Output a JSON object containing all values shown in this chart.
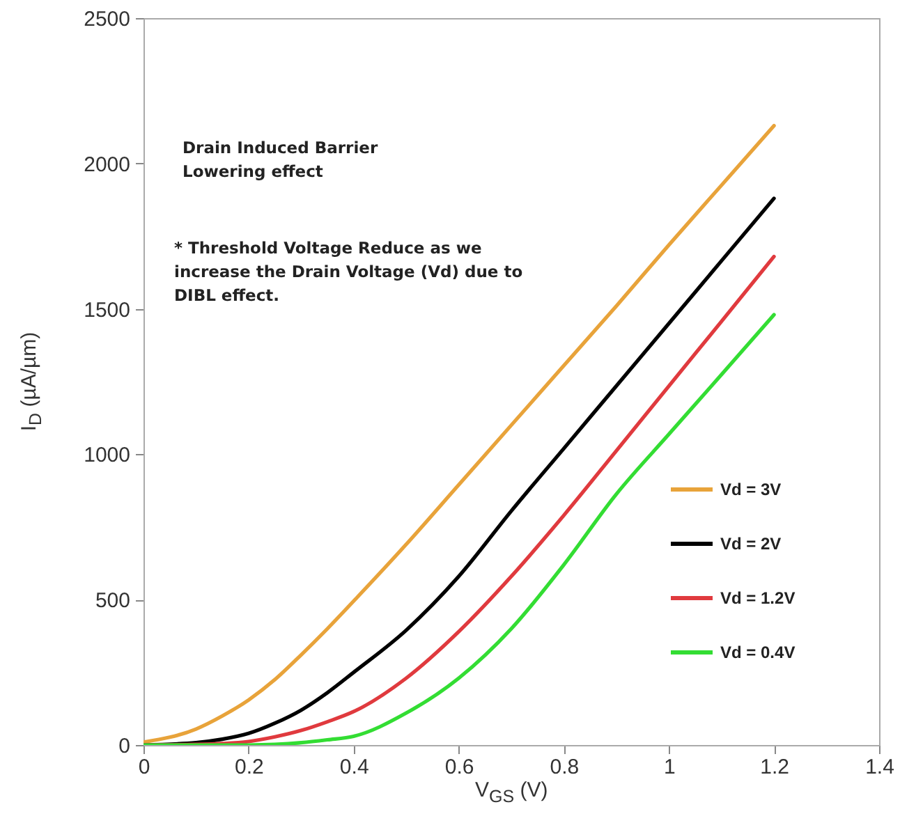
{
  "chart_data": {
    "type": "line",
    "xlabel": "V$_{GS}$ (V)",
    "ylabel": "I$_{D}$ (µA/µm)",
    "annotations": [
      "Drain Induced Barrier Lowering effect",
      "* Threshold Voltage Reduce as we increase the Drain Voltage (Vd) due to DIBL effect."
    ],
    "x": [
      0,
      0.1,
      0.15,
      0.2,
      0.25,
      0.3,
      0.35,
      0.4,
      0.5,
      0.6,
      0.7,
      0.8,
      0.9,
      1.0,
      1.1,
      1.2
    ],
    "series": [
      {
        "name": "Vd = 3V",
        "color": "#e8a33a",
        "values": [
          10,
          55,
          100,
          155,
          225,
          310,
          400,
          495,
          690,
          895,
          1100,
          1305,
          1510,
          1720,
          1925,
          2130
        ]
      },
      {
        "name": "Vd = 2V",
        "color": "#000000",
        "values": [
          0,
          8,
          20,
          40,
          75,
          120,
          180,
          250,
          395,
          580,
          805,
          1020,
          1235,
          1450,
          1665,
          1880
        ]
      },
      {
        "name": "Vd = 1.2V",
        "color": "#e03a3e",
        "values": [
          0,
          2,
          5,
          12,
          28,
          50,
          80,
          115,
          230,
          390,
          580,
          790,
          1012,
          1235,
          1457,
          1680
        ]
      },
      {
        "name": "Vd = 0.4V",
        "color": "#33dd33",
        "values": [
          0,
          0,
          0,
          0,
          2,
          8,
          18,
          30,
          110,
          230,
          400,
          620,
          863,
          1069,
          1274,
          1480
        ]
      }
    ],
    "xlim": [
      0,
      1.4
    ],
    "xticks": [
      0,
      0.2,
      0.4,
      0.6,
      0.8,
      1,
      1.2,
      1.4
    ],
    "ylim": [
      0,
      2500
    ],
    "yticks": [
      0,
      500,
      1000,
      1500,
      2000,
      2500
    ],
    "grid": false,
    "legend": "bottom right",
    "line_style": "solid"
  }
}
